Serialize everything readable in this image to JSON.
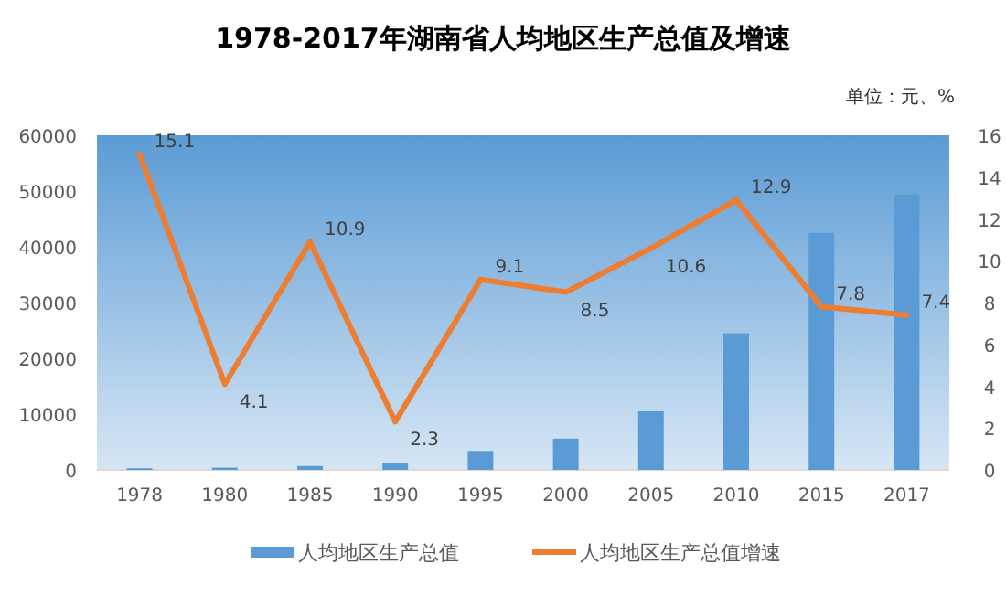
{
  "chart_data": {
    "type": "bar",
    "title": "1978-2017年湖南省人均地区生产总值及增速",
    "annotations": [
      "单位：元、%"
    ],
    "categories": [
      "1978",
      "1980",
      "1985",
      "1990",
      "1995",
      "2000",
      "2005",
      "2010",
      "2015",
      "2017"
    ],
    "series": [
      {
        "name": "人均地区生产总值",
        "color": "#5b9bd5",
        "values": [
          300,
          400,
          700,
          1200,
          3400,
          5600,
          10500,
          24500,
          42500,
          49400
        ]
      },
      {
        "name": "人均地区生产总值增速",
        "type": "line",
        "axis": "y2",
        "color": "#ed7d31",
        "values": [
          15.1,
          4.1,
          10.9,
          2.3,
          9.1,
          8.5,
          10.6,
          12.9,
          7.8,
          7.4
        ],
        "value_labels": [
          "15.1",
          "4.1",
          "10.9",
          "2.3",
          "9.1",
          "8.5",
          "10.6",
          "12.9",
          "7.8",
          "7.4"
        ]
      }
    ],
    "ylim": [
      0,
      60000
    ],
    "yticks": [
      0,
      10000,
      20000,
      30000,
      40000,
      50000,
      60000
    ],
    "y2lim": [
      0,
      16
    ],
    "y2ticks": [
      0,
      2,
      4,
      6,
      8,
      10,
      12,
      14,
      16
    ],
    "legend": "bottom",
    "marker": "none"
  }
}
